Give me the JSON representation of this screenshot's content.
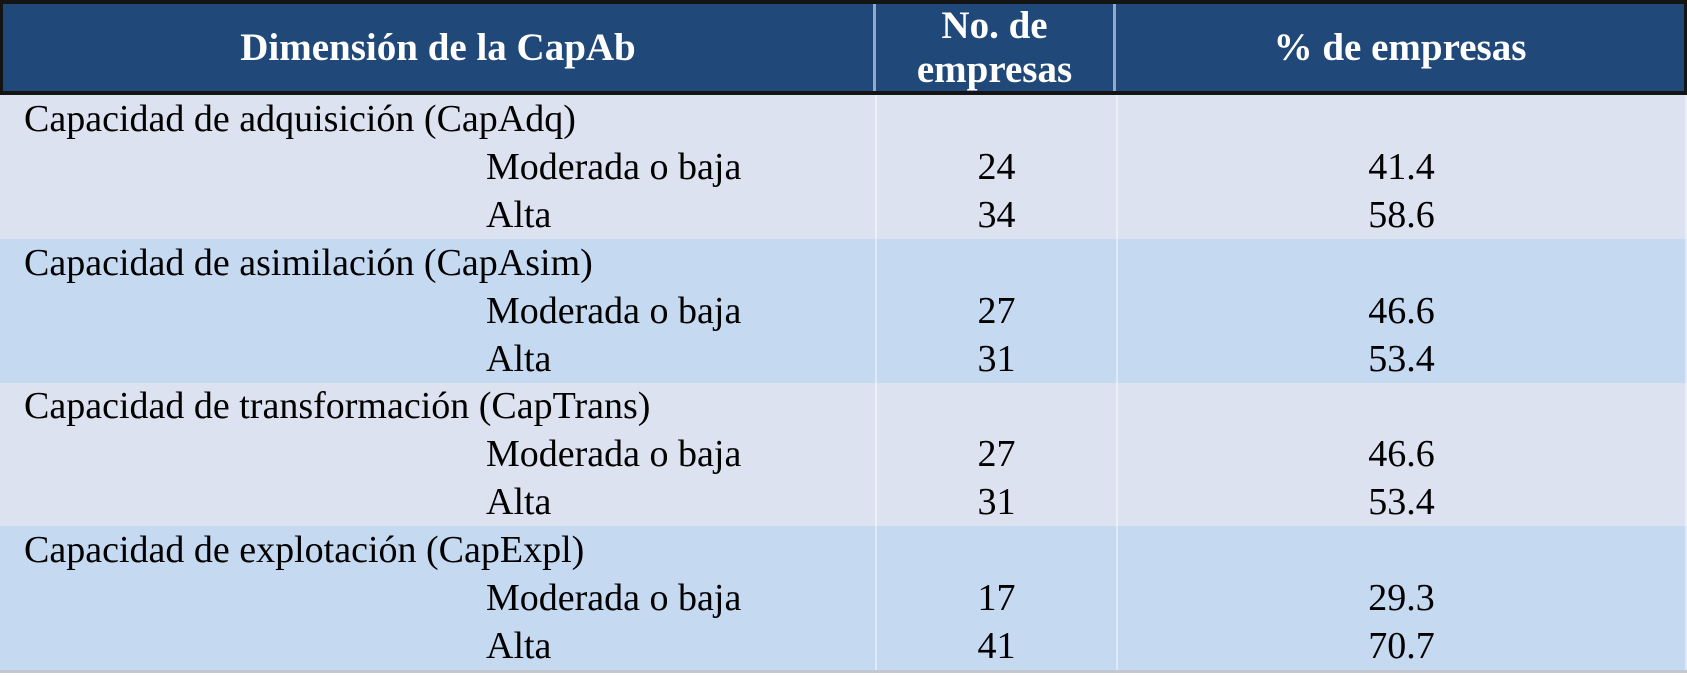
{
  "colors": {
    "header_bg": "#204878",
    "header_text": "#ffffff",
    "row_light": "#dce2ef",
    "row_dark": "#c5d9f1",
    "body_text": "#000000"
  },
  "header": {
    "columns": [
      "Dimensión de la CapAb",
      "No. de empresas",
      "% de empresas"
    ]
  },
  "table": {
    "rows": [
      {
        "label": "Capacidad de adquisición (CapAdq)",
        "n": "",
        "pct": ""
      },
      {
        "label": "Moderada o baja",
        "n": "24",
        "pct": "41.4"
      },
      {
        "label": "Alta",
        "n": "34",
        "pct": "58.6"
      },
      {
        "label": "Capacidad de asimilación (CapAsim)",
        "n": "",
        "pct": ""
      },
      {
        "label": "Moderada o baja",
        "n": "27",
        "pct": "46.6"
      },
      {
        "label": "Alta",
        "n": "31",
        "pct": "53.4"
      },
      {
        "label": "Capacidad de transformación (CapTrans)",
        "n": "",
        "pct": ""
      },
      {
        "label": "Moderada o baja",
        "n": "27",
        "pct": "46.6"
      },
      {
        "label": "Alta",
        "n": "31",
        "pct": "53.4"
      },
      {
        "label": "Capacidad de explotación (CapExpl)",
        "n": "",
        "pct": ""
      },
      {
        "label": "Moderada o baja",
        "n": "17",
        "pct": "29.3"
      },
      {
        "label": "Alta",
        "n": "41",
        "pct": "70.7"
      }
    ]
  },
  "chart_data": {
    "type": "table",
    "title": "Dimensión de la CapAb",
    "columns": [
      "Dimensión de la CapAb",
      "No. de empresas",
      "% de empresas"
    ],
    "sections": [
      {
        "dimension": "Capacidad de adquisición (CapAdq)",
        "levels": [
          {
            "nivel": "Moderada o baja",
            "no_empresas": 24,
            "pct_empresas": 41.4
          },
          {
            "nivel": "Alta",
            "no_empresas": 34,
            "pct_empresas": 58.6
          }
        ]
      },
      {
        "dimension": "Capacidad de asimilación (CapAsim)",
        "levels": [
          {
            "nivel": "Moderada o baja",
            "no_empresas": 27,
            "pct_empresas": 46.6
          },
          {
            "nivel": "Alta",
            "no_empresas": 31,
            "pct_empresas": 53.4
          }
        ]
      },
      {
        "dimension": "Capacidad de transformación (CapTrans)",
        "levels": [
          {
            "nivel": "Moderada o baja",
            "no_empresas": 27,
            "pct_empresas": 46.6
          },
          {
            "nivel": "Alta",
            "no_empresas": 31,
            "pct_empresas": 53.4
          }
        ]
      },
      {
        "dimension": "Capacidad de explotación (CapExpl)",
        "levels": [
          {
            "nivel": "Moderada o baja",
            "no_empresas": 17,
            "pct_empresas": 29.3
          },
          {
            "nivel": "Alta",
            "no_empresas": 41,
            "pct_empresas": 70.7
          }
        ]
      }
    ]
  }
}
